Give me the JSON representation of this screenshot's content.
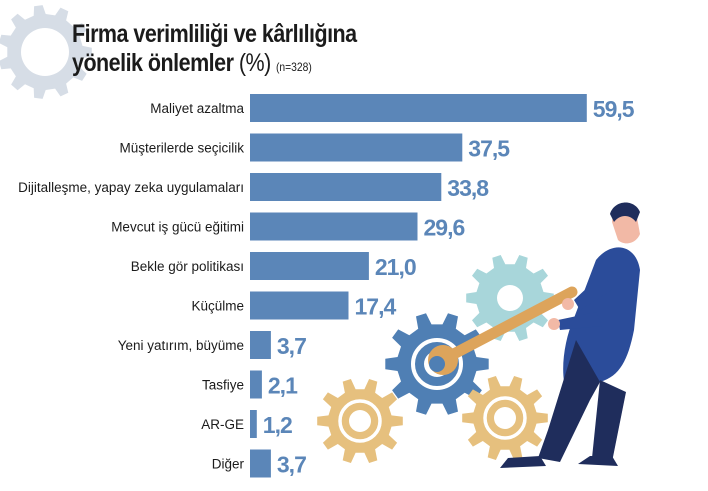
{
  "chart_data": {
    "type": "bar",
    "orientation": "horizontal",
    "title_line1": "Firma verimliliği ve kârlılığına",
    "title_line2": "yönelik önlemler",
    "unit": "(%)",
    "note": "(n=328)",
    "categories": [
      "Maliyet azaltma",
      "Müşterilerde seçicilik",
      "Dijitalleşme, yapay zeka uygulamaları",
      "Mevcut iş gücü eğitimi",
      "Bekle gör politikası",
      "Küçülme",
      "Yeni yatırım, büyüme",
      "Tasfiye",
      "AR-GE",
      "Diğer"
    ],
    "values": [
      59.5,
      37.5,
      33.8,
      29.6,
      21.0,
      17.4,
      3.7,
      2.1,
      1.2,
      3.7
    ],
    "value_labels": [
      "59,5",
      "37,5",
      "33,8",
      "29,6",
      "21,0",
      "17,4",
      "3,7",
      "2,1",
      "1,2",
      "3,7"
    ],
    "bar_color": "#5b86b8",
    "label_color": "#5b86b8",
    "grid": false,
    "legend": "none"
  },
  "illustration": {
    "gear_gray": "#d6dde6",
    "gear_blue": "#4f7fb4",
    "gear_teal": "#a8d6da",
    "gear_tan": "#e6c07e",
    "person_blue": "#2b4c9a",
    "navy": "#1f2d5c",
    "skin": "#f2b9a6"
  }
}
